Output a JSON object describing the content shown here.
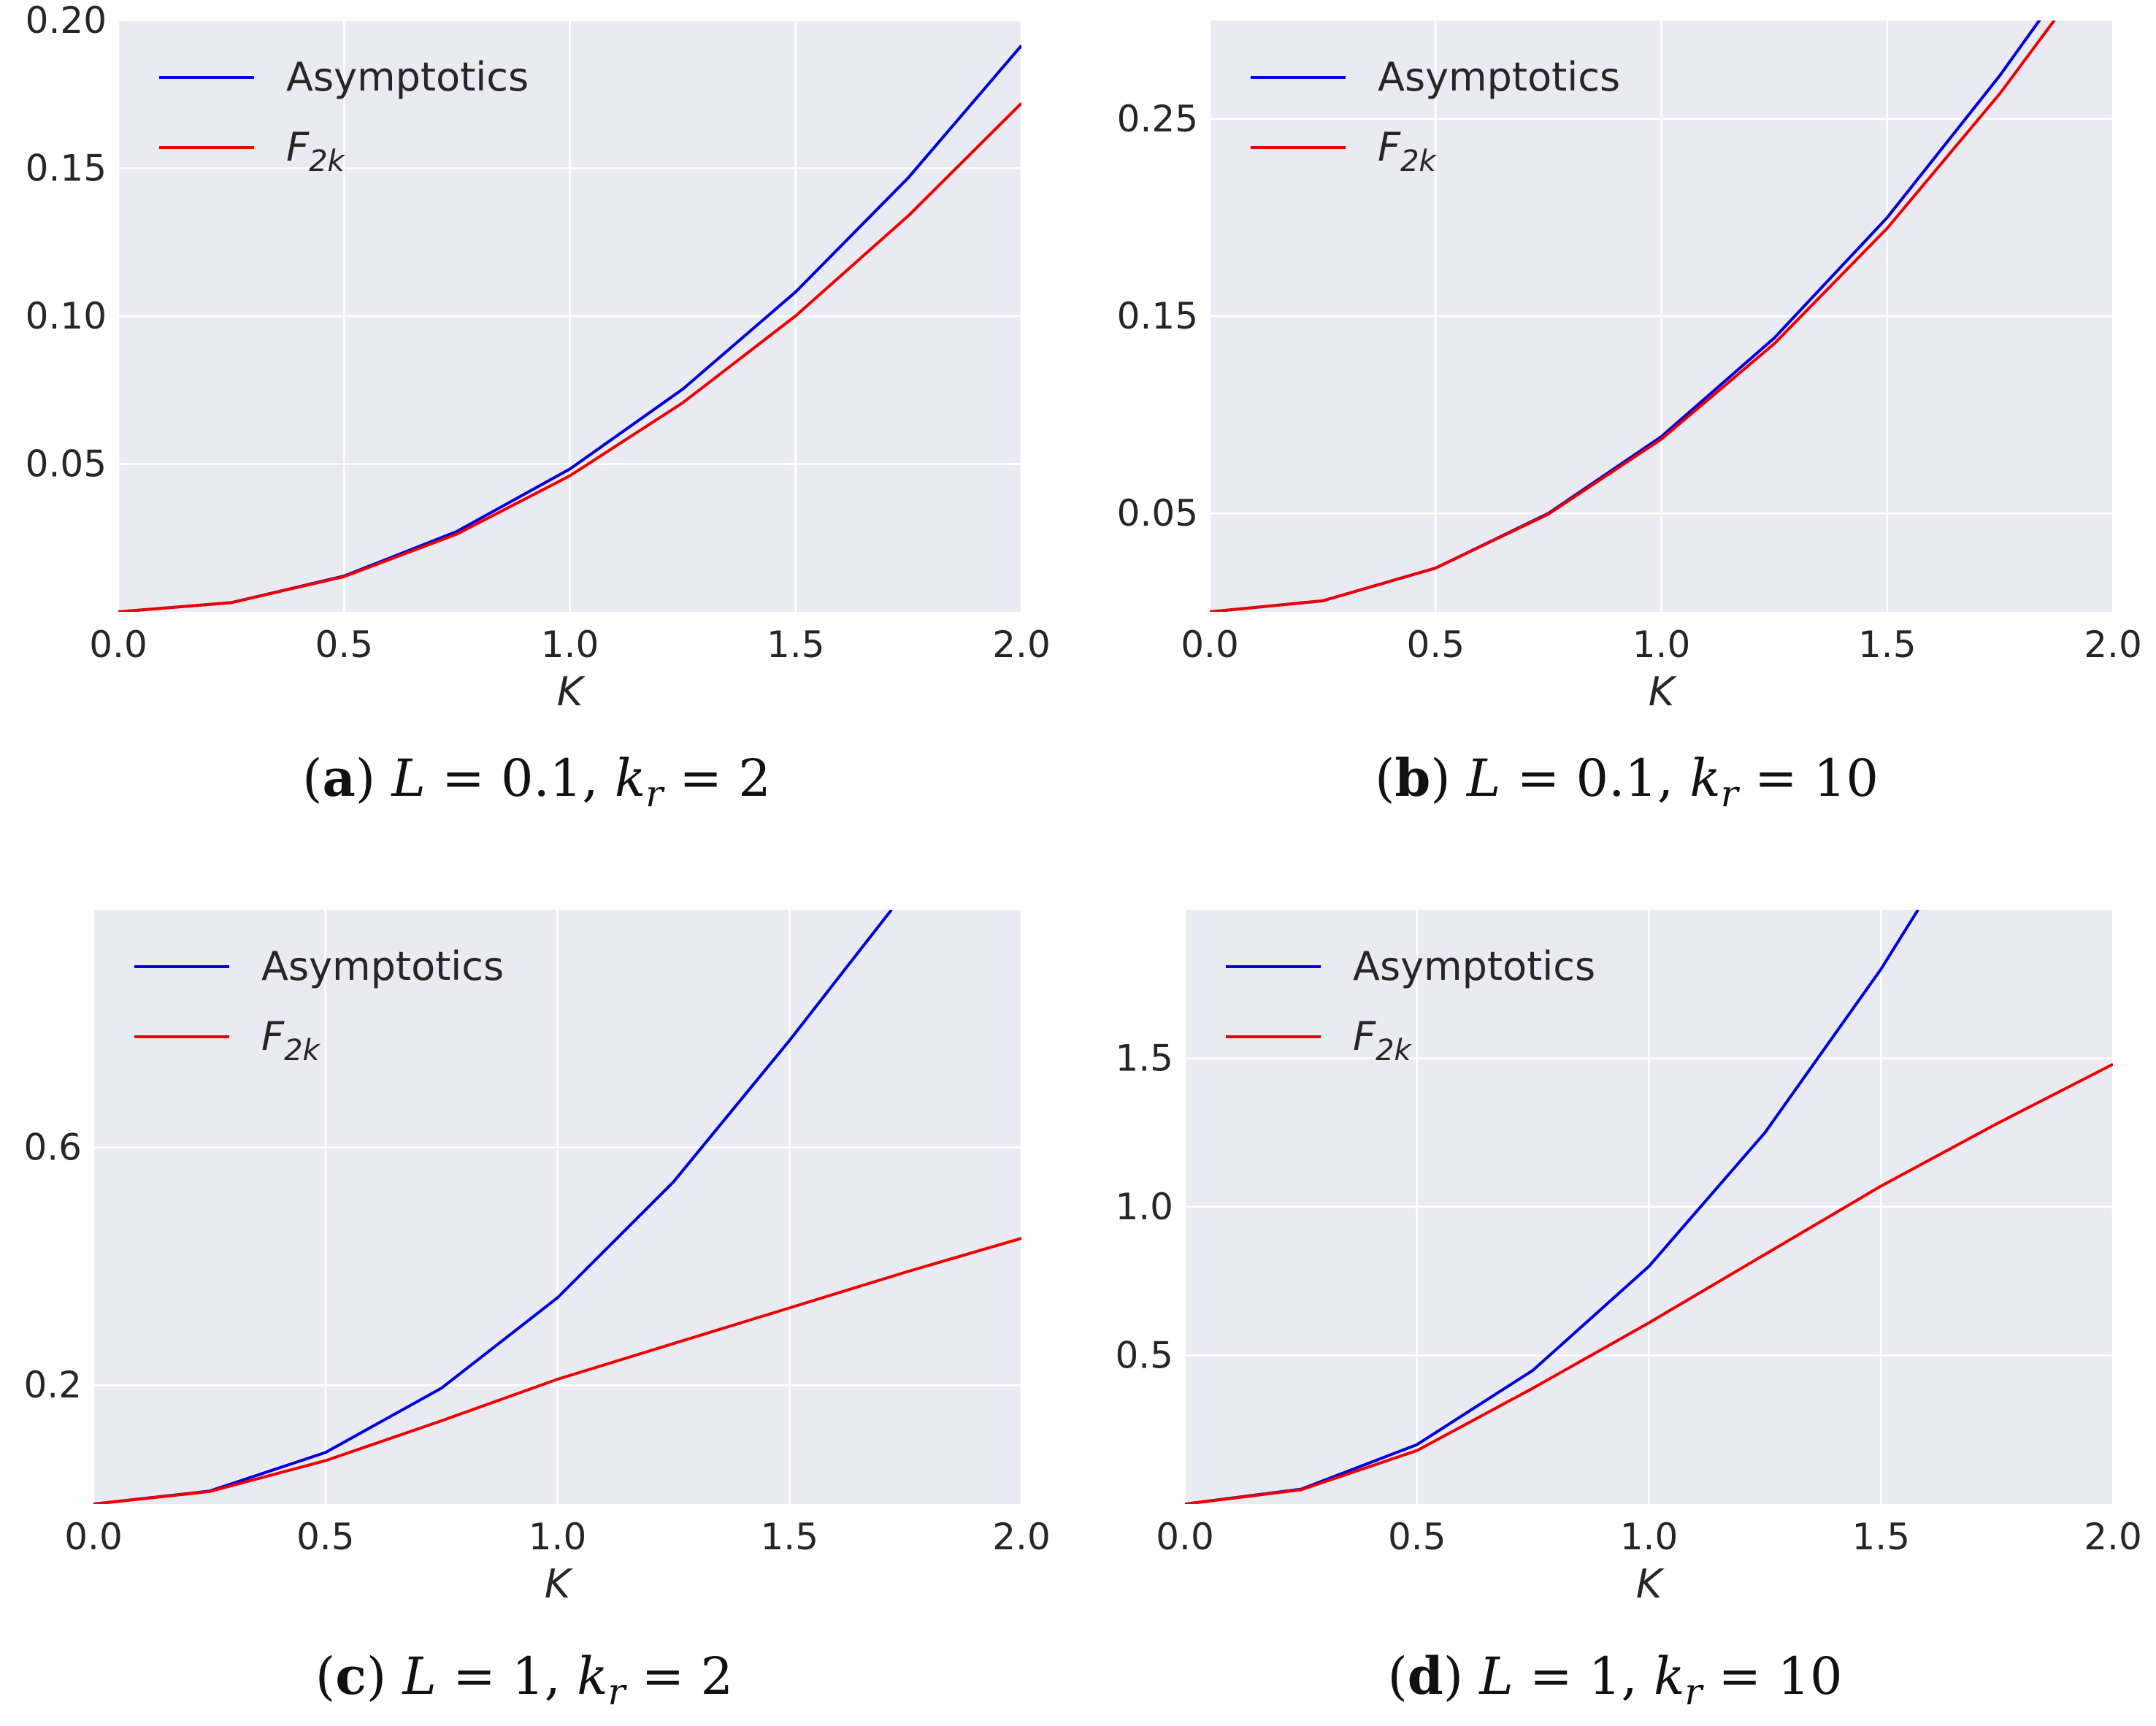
{
  "chart_data": [
    {
      "type": "line",
      "panel": "a",
      "caption": {
        "label": "(a)",
        "letter": "a",
        "params": "L = 0.1, kr = 2",
        "L_value": "0.1",
        "kr_value": "2"
      },
      "xlabel": "K",
      "ylabel": "",
      "xlim": [
        0,
        2
      ],
      "ylim": [
        0,
        0.2
      ],
      "xticks": [
        0,
        0.5,
        1,
        1.5,
        2
      ],
      "xtick_labels": [
        "0.0",
        "0.5",
        "1.0",
        "1.5",
        "2.0"
      ],
      "yticks": [
        0.05,
        0.1,
        0.15,
        0.2
      ],
      "ytick_labels": [
        "0.05",
        "0.10",
        "0.15",
        "0.20"
      ],
      "grid": true,
      "legend_position": "top-left",
      "series": [
        {
          "name": "Asymptotics",
          "legend_label": "Asymptotics",
          "color": "#0000dd",
          "x": [
            0,
            0.25,
            0.5,
            0.75,
            1.0,
            1.25,
            1.5,
            1.75,
            2.0
          ],
          "y": [
            0,
            0.0031,
            0.0121,
            0.0272,
            0.0483,
            0.0753,
            0.1082,
            0.1469,
            0.1915
          ]
        },
        {
          "name": "F_{2k}",
          "legend_label": "F",
          "legend_subscript": "2k",
          "color": "#ee0000",
          "x": [
            0,
            0.25,
            0.5,
            0.75,
            1.0,
            1.25,
            1.5,
            1.75,
            2.0
          ],
          "y": [
            0,
            0.0031,
            0.0119,
            0.0263,
            0.046,
            0.0707,
            0.1001,
            0.134,
            0.172
          ]
        }
      ]
    },
    {
      "type": "line",
      "panel": "b",
      "caption": {
        "label": "(b)",
        "letter": "b",
        "params": "L = 0.1, kr = 10",
        "L_value": "0.1",
        "kr_value": "10"
      },
      "xlabel": "K",
      "ylabel": "",
      "xlim": [
        0,
        2
      ],
      "ylim": [
        0,
        0.3
      ],
      "xticks": [
        0,
        0.5,
        1,
        1.5,
        2
      ],
      "xtick_labels": [
        "0.0",
        "0.5",
        "1.0",
        "1.5",
        "2.0"
      ],
      "yticks": [
        0.05,
        0.15,
        0.25
      ],
      "ytick_labels": [
        "0.05",
        "0.15",
        "0.25"
      ],
      "grid": true,
      "legend_position": "top-left",
      "series": [
        {
          "name": "Asymptotics",
          "legend_label": "Asymptotics",
          "color": "#0000dd",
          "x": [
            0,
            0.25,
            0.5,
            0.75,
            1.0,
            1.25,
            1.5,
            1.75,
            1.84
          ],
          "y": [
            0,
            0.0056,
            0.0222,
            0.05,
            0.0889,
            0.1389,
            0.2,
            0.2722,
            0.3009
          ]
        },
        {
          "name": "F_{2k}",
          "legend_label": "F",
          "legend_subscript": "2k",
          "color": "#ee0000",
          "x": [
            0,
            0.25,
            0.5,
            0.75,
            1.0,
            1.25,
            1.5,
            1.75,
            1.87
          ],
          "y": [
            0,
            0.0056,
            0.0222,
            0.0496,
            0.0876,
            0.136,
            0.1946,
            0.263,
            0.3
          ]
        }
      ]
    },
    {
      "type": "line",
      "panel": "c",
      "caption": {
        "label": "(c)",
        "letter": "c",
        "params": "L = 1, kr = 2",
        "L_value": "1",
        "kr_value": "2"
      },
      "xlabel": "K",
      "ylabel": "",
      "xlim": [
        0,
        2
      ],
      "ylim": [
        0,
        1.0
      ],
      "xticks": [
        0,
        0.5,
        1,
        1.5,
        2
      ],
      "xtick_labels": [
        "0.0",
        "0.5",
        "1.0",
        "1.5",
        "2.0"
      ],
      "yticks": [
        0.2,
        0.6
      ],
      "ytick_labels": [
        "0.2",
        "0.6"
      ],
      "grid": true,
      "legend_position": "top-left",
      "series": [
        {
          "name": "Asymptotics",
          "legend_label": "Asymptotics",
          "color": "#0000dd",
          "x": [
            0,
            0.25,
            0.5,
            0.75,
            1.0,
            1.25,
            1.5,
            1.72
          ],
          "y": [
            0,
            0.0217,
            0.0867,
            0.195,
            0.347,
            0.542,
            0.78,
            1.0
          ]
        },
        {
          "name": "F_{2k}",
          "legend_label": "F",
          "legend_subscript": "2k",
          "color": "#ee0000",
          "x": [
            0,
            0.25,
            0.5,
            0.75,
            1.0,
            1.25,
            1.5,
            1.75,
            2.0
          ],
          "y": [
            0,
            0.021,
            0.073,
            0.14,
            0.21,
            0.27,
            0.33,
            0.39,
            0.447
          ]
        }
      ]
    },
    {
      "type": "line",
      "panel": "d",
      "caption": {
        "label": "(d)",
        "letter": "d",
        "params": "L = 1, kr = 10",
        "L_value": "1",
        "kr_value": "10"
      },
      "xlabel": "K",
      "ylabel": "",
      "xlim": [
        0,
        2
      ],
      "ylim": [
        0,
        2.0
      ],
      "xticks": [
        0,
        0.5,
        1,
        1.5,
        2
      ],
      "xtick_labels": [
        "0.0",
        "0.5",
        "1.0",
        "1.5",
        "2.0"
      ],
      "yticks": [
        0.5,
        1.0,
        1.5
      ],
      "ytick_labels": [
        "0.5",
        "1.0",
        "1.5"
      ],
      "grid": true,
      "legend_position": "top-left",
      "series": [
        {
          "name": "Asymptotics",
          "legend_label": "Asymptotics",
          "color": "#0000dd",
          "x": [
            0,
            0.25,
            0.5,
            0.75,
            1.0,
            1.25,
            1.5,
            1.58
          ],
          "y": [
            0,
            0.05,
            0.2,
            0.45,
            0.8,
            1.25,
            1.8,
            2.0
          ]
        },
        {
          "name": "F_{2k}",
          "legend_label": "F",
          "legend_subscript": "2k",
          "color": "#ee0000",
          "x": [
            0,
            0.25,
            0.5,
            0.75,
            1.0,
            1.25,
            1.5,
            1.75,
            2.0
          ],
          "y": [
            0,
            0.048,
            0.18,
            0.39,
            0.61,
            0.84,
            1.07,
            1.28,
            1.48
          ]
        }
      ]
    }
  ]
}
